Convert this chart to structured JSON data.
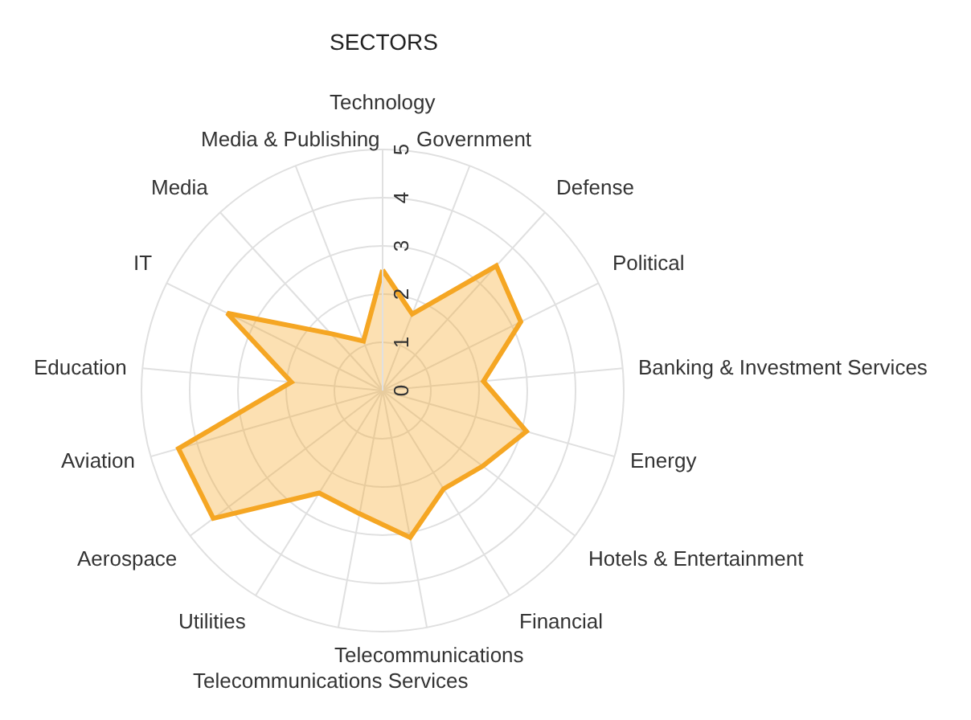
{
  "chart_data": {
    "type": "radar",
    "title": "SECTORS",
    "categories": [
      "Technology",
      "Government",
      "Defense",
      "Political",
      "Banking & Investment Services",
      "Energy",
      "Hotels & Entertainment",
      "Financial",
      "Telecommunications",
      "Telecommunications Services",
      "Utilities",
      "Aerospace",
      "Aviation",
      "Education",
      "IT",
      "Media",
      "Media & Publishing"
    ],
    "series": [
      {
        "color": "#f5a623",
        "values": [
          2.5,
          1.7,
          3.5,
          3.2,
          2.1,
          3.1,
          2.6,
          2.4,
          3.1,
          2.6,
          2.5,
          4.4,
          4.4,
          1.9,
          3.6,
          1.6,
          1.1
        ]
      }
    ],
    "ylim": [
      0,
      5
    ],
    "yticks": [
      0,
      1,
      2,
      3,
      4,
      5
    ],
    "grid": true,
    "marker": "none",
    "line_style": "solid"
  }
}
